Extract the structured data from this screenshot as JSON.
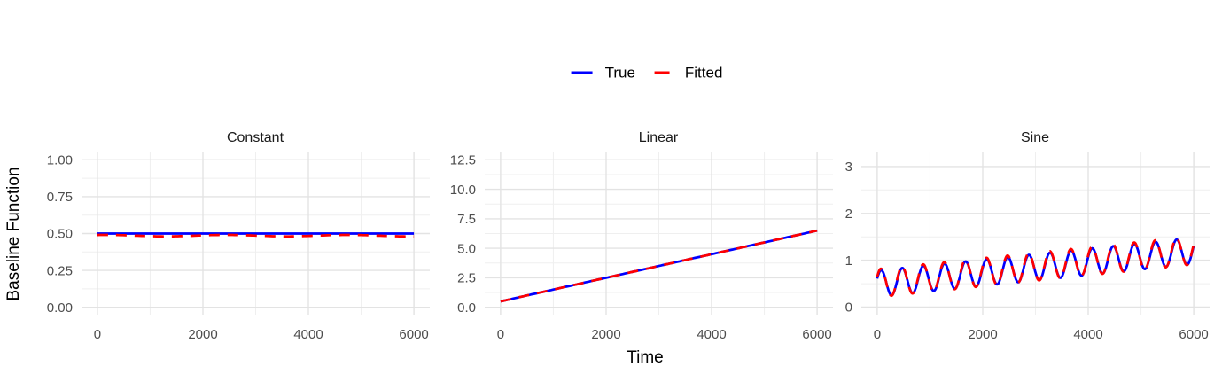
{
  "colors": {
    "true_line": "#0000FF",
    "fitted_line": "#FF0000",
    "grid_major": "#e3e3e3",
    "grid_minor": "#efefef",
    "tick_label": "#4d4d4d",
    "title_text": "#000000"
  },
  "legend": {
    "items": [
      {
        "label": "True",
        "color": "#0000FF",
        "linetype": "solid"
      },
      {
        "label": "Fitted",
        "color": "#FF0000",
        "linetype": "dashed"
      }
    ]
  },
  "axes": {
    "y_title": "Baseline Function",
    "x_title": "Time"
  },
  "chart_data": [
    {
      "type": "line",
      "title": "Constant",
      "x_domain": [
        0,
        6000
      ],
      "xlim": [
        -300,
        6300
      ],
      "x_major": [
        0,
        2000,
        4000,
        6000
      ],
      "x_tick_labels": [
        "0",
        "2000",
        "4000",
        "6000"
      ],
      "x_minor": [
        1000,
        3000,
        5000
      ],
      "ylim": [
        -0.05,
        1.05
      ],
      "y_major": [
        0,
        0.25,
        0.5,
        0.75,
        1
      ],
      "y_tick_labels": [
        "0.00",
        "0.25",
        "0.50",
        "0.75",
        "1.00"
      ],
      "y_minor": [
        0.125,
        0.375,
        0.625,
        0.875
      ],
      "grid": true,
      "legend_position": "top",
      "series": [
        {
          "name": "True",
          "color": "#0000FF",
          "linetype": "solid",
          "gen": {
            "kind": "constant",
            "value": 0.5
          }
        },
        {
          "name": "Fitted",
          "color": "#FF0000",
          "linetype": "dashed",
          "gen": {
            "kind": "constant",
            "value": 0.486,
            "wobble_amp": 0.005,
            "wobble_period": 2300,
            "wobble_phase": 1.2
          }
        }
      ]
    },
    {
      "type": "line",
      "title": "Linear",
      "x_domain": [
        0,
        6000
      ],
      "xlim": [
        -300,
        6300
      ],
      "x_major": [
        0,
        2000,
        4000,
        6000
      ],
      "x_tick_labels": [
        "0",
        "2000",
        "4000",
        "6000"
      ],
      "x_minor": [
        1000,
        3000,
        5000
      ],
      "ylim": [
        -0.625,
        13.125
      ],
      "y_major": [
        0,
        2.5,
        5,
        7.5,
        10,
        12.5
      ],
      "y_tick_labels": [
        "0.0",
        "2.5",
        "5.0",
        "7.5",
        "10.0",
        "12.5"
      ],
      "y_minor": [
        1.25,
        3.75,
        6.25,
        8.75,
        11.25
      ],
      "grid": true,
      "legend_position": "top",
      "series": [
        {
          "name": "True",
          "color": "#0000FF",
          "linetype": "solid",
          "gen": {
            "kind": "linear",
            "intercept": 0.5,
            "slope_per_x": 0.001
          }
        },
        {
          "name": "Fitted",
          "color": "#FF0000",
          "linetype": "dashed",
          "gen": {
            "kind": "linear",
            "intercept": 0.5,
            "slope_per_x": 0.001
          }
        }
      ]
    },
    {
      "type": "line",
      "title": "Sine",
      "x_domain": [
        0,
        6000
      ],
      "xlim": [
        -300,
        6300
      ],
      "x_major": [
        0,
        2000,
        4000,
        6000
      ],
      "x_tick_labels": [
        "0",
        "2000",
        "4000",
        "6000"
      ],
      "x_minor": [
        1000,
        3000,
        5000
      ],
      "ylim": [
        -0.16,
        3.3
      ],
      "y_major": [
        0,
        1,
        2,
        3
      ],
      "y_tick_labels": [
        "0",
        "1",
        "2",
        "3"
      ],
      "y_minor": [
        0.5,
        1.5,
        2.5
      ],
      "grid": true,
      "legend_position": "top",
      "series": [
        {
          "name": "True",
          "color": "#0000FF",
          "linetype": "solid",
          "gen": {
            "kind": "sine",
            "base_start": 0.5,
            "base_end": 1.2,
            "amplitude": 0.28,
            "period": 400,
            "phase": 0.4
          }
        },
        {
          "name": "Fitted",
          "color": "#FF0000",
          "linetype": "dashed",
          "gen": {
            "kind": "sine",
            "base_start": 0.512,
            "base_end": 1.212,
            "amplitude": 0.3,
            "period": 400,
            "phase": 0.46
          }
        }
      ]
    }
  ]
}
